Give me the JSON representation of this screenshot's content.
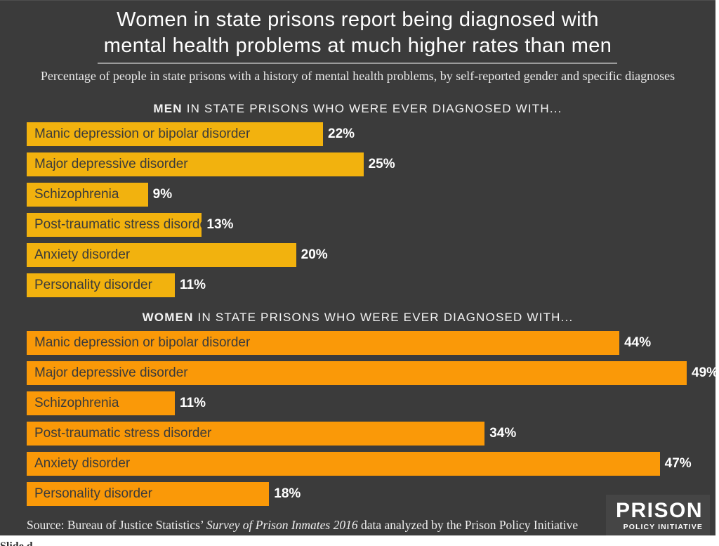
{
  "title": {
    "line1": "Women in state prisons report being diagnosed with",
    "line2": "mental health problems at much higher rates than men"
  },
  "subtitle": "Percentage of people in state prisons with a history of mental health problems, by self-reported gender and specific diagnoses",
  "chart_data": {
    "type": "bar",
    "orientation": "horizontal",
    "title": "Women in state prisons report being diagnosed with mental health problems at much higher rates than men",
    "subtitle": "Percentage of people in state prisons with a history of mental health problems, by self-reported gender and specific diagnoses",
    "categories": [
      "Manic depression or bipolar disorder",
      "Major depressive disorder",
      "Schizophrenia",
      "Post-traumatic stress disorder",
      "Anxiety disorder",
      "Personality disorder"
    ],
    "xlim": [
      0,
      49
    ],
    "value_unit": "%",
    "grid": false,
    "legend": "none",
    "series": [
      {
        "name": "Men",
        "header_bold": "MEN",
        "header_rest": " IN STATE PRISONS WHO WERE EVER DIAGNOSED WITH...",
        "color": "#f2b20e",
        "values": [
          22,
          25,
          9,
          13,
          20,
          11
        ],
        "value_labels": [
          "22%",
          "25%",
          "9%",
          "13%",
          "20%",
          "11%"
        ]
      },
      {
        "name": "Women",
        "header_bold": "WOMEN",
        "header_rest": " IN STATE PRISONS WHO WERE EVER DIAGNOSED WITH...",
        "color": "#fa9908",
        "values": [
          44,
          49,
          11,
          34,
          47,
          18
        ],
        "value_labels": [
          "44%",
          "49%",
          "11%",
          "34%",
          "47%",
          "18%"
        ]
      }
    ]
  },
  "source": {
    "prefix": "Source: Bureau of Justice Statistics’ ",
    "italic": "Survey of Prison Inmates 2016",
    "suffix": " data analyzed by the Prison Policy Initiative"
  },
  "logo": {
    "line1": "PRISON",
    "line2": "POLICY INITIATIVE"
  },
  "page_bottom": {
    "partial_text": "Slide d"
  },
  "colors": {
    "slide_background": "#3b3b3b",
    "men_bar": "#f2b20e",
    "women_bar": "#fa9908",
    "text_light": "#ffffff",
    "bar_label_text": "#3b3b3b"
  }
}
